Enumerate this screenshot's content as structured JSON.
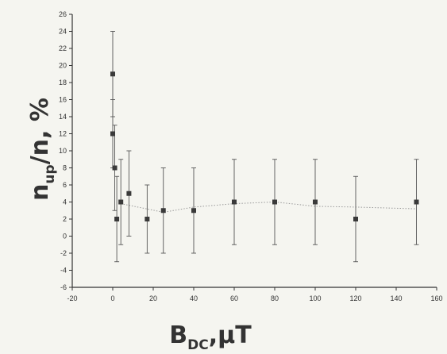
{
  "chart_data": {
    "type": "scatter",
    "title": "",
    "xlabel": {
      "main": "B",
      "sub": "DC",
      "rest": ",μT"
    },
    "ylabel": {
      "main": "n",
      "sub": "up",
      "rest": "/n, %"
    },
    "xlim": [
      -20,
      160
    ],
    "ylim": [
      -6,
      26
    ],
    "x_ticks": [
      -20,
      0,
      20,
      40,
      60,
      80,
      100,
      120,
      140,
      160
    ],
    "y_ticks": [
      -6,
      -4,
      -2,
      0,
      2,
      4,
      6,
      8,
      10,
      12,
      14,
      16,
      18,
      20,
      22,
      24,
      26
    ],
    "grid": false,
    "legend": "none",
    "series": [
      {
        "marker": "square",
        "color": "#3a3a3a",
        "points": [
          {
            "x": 0,
            "y": 19,
            "err": 5
          },
          {
            "x": 0,
            "y": 12,
            "err": 4
          },
          {
            "x": 1,
            "y": 8,
            "err": 5
          },
          {
            "x": 2,
            "y": 2,
            "err": 5
          },
          {
            "x": 4,
            "y": 4,
            "err": 5
          },
          {
            "x": 8,
            "y": 5,
            "err": 5
          },
          {
            "x": 17,
            "y": 2,
            "err": 4
          },
          {
            "x": 25,
            "y": 3,
            "err": 5
          },
          {
            "x": 40,
            "y": 3,
            "err": 5
          },
          {
            "x": 60,
            "y": 4,
            "err": 5
          },
          {
            "x": 80,
            "y": 4,
            "err": 5
          },
          {
            "x": 100,
            "y": 4,
            "err": 5
          },
          {
            "x": 120,
            "y": 2,
            "err": 5
          },
          {
            "x": 150,
            "y": 4,
            "err": 5
          }
        ]
      }
    ],
    "trend_line": {
      "style": "dotted",
      "color": "#9a9a9a",
      "points": [
        {
          "x": 4,
          "y": 3.8
        },
        {
          "x": 25,
          "y": 2.8
        },
        {
          "x": 40,
          "y": 3.4
        },
        {
          "x": 60,
          "y": 3.8
        },
        {
          "x": 80,
          "y": 4.0
        },
        {
          "x": 100,
          "y": 3.5
        },
        {
          "x": 120,
          "y": 3.4
        },
        {
          "x": 150,
          "y": 3.2
        }
      ]
    }
  }
}
